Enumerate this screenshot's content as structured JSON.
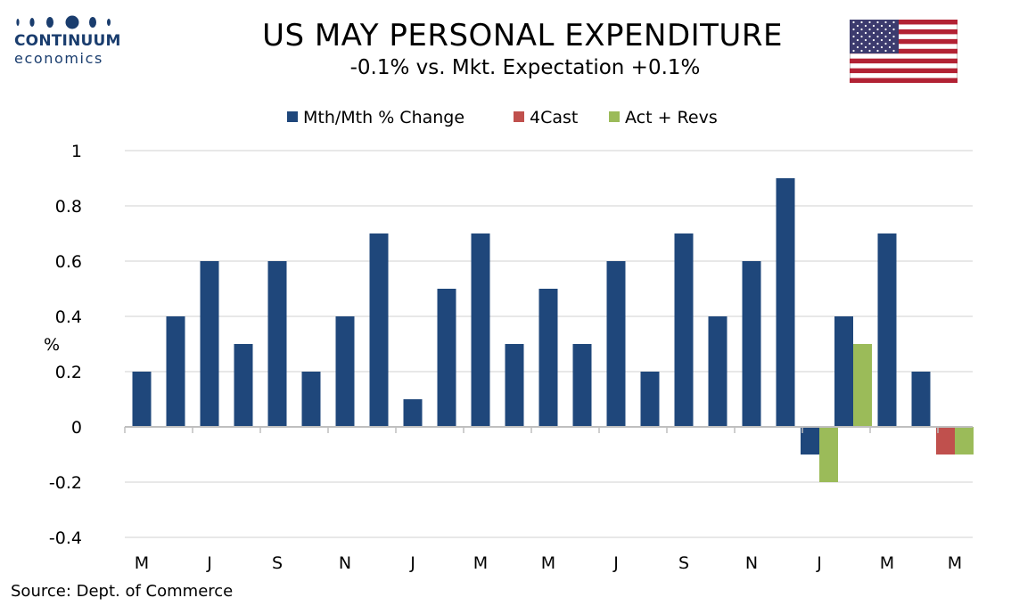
{
  "header": {
    "title": "US MAY PERSONAL EXPENDITURE",
    "subtitle": "-0.1% vs. Mkt. Expectation +0.1%"
  },
  "logo": {
    "name": "CONTINUUM",
    "sub": "economics",
    "color": "#1a3d6e"
  },
  "flag": {
    "icon": "us-flag-icon"
  },
  "source": "Source: Dept. of Commerce",
  "chart_data": {
    "type": "bar",
    "title": "US MAY PERSONAL EXPENDITURE",
    "subtitle": "-0.1% vs. Mkt. Expectation +0.1%",
    "ylabel": "%",
    "xlabel": "",
    "ylim": [
      -0.4,
      1
    ],
    "yticks": [
      1,
      0.8,
      0.6,
      0.4,
      0.2,
      0,
      -0.2,
      -0.4
    ],
    "ytick_labels": [
      "1",
      "0.8",
      "0.6",
      "0.4",
      "0.2",
      "0",
      "-0.2",
      "-0.4"
    ],
    "grid": true,
    "legend_position": "top-center",
    "x_tick_labels": [
      "M",
      "J",
      "S",
      "N",
      "J",
      "M",
      "M",
      "J",
      "S",
      "N",
      "J",
      "M",
      "M"
    ],
    "series": [
      {
        "name": "Mth/Mth % Change",
        "color": "#1f477b",
        "values": [
          0.2,
          0.4,
          0.6,
          0.3,
          0.6,
          0.2,
          0.4,
          0.7,
          0.1,
          0.5,
          0.7,
          0.3,
          0.5,
          0.3,
          0.6,
          0.2,
          0.7,
          0.4,
          0.6,
          0.9,
          -0.1,
          0.4,
          0.7,
          0.2,
          null
        ]
      },
      {
        "name": "4Cast",
        "color": "#c0504d",
        "values": [
          null,
          null,
          null,
          null,
          null,
          null,
          null,
          null,
          null,
          null,
          null,
          null,
          null,
          null,
          null,
          null,
          null,
          null,
          null,
          null,
          null,
          null,
          null,
          null,
          -0.1
        ]
      },
      {
        "name": "Act + Revs",
        "color": "#9bbb59",
        "values": [
          null,
          null,
          null,
          null,
          null,
          null,
          null,
          null,
          null,
          null,
          null,
          null,
          null,
          null,
          null,
          null,
          null,
          null,
          null,
          null,
          -0.2,
          0.3,
          null,
          null,
          -0.1
        ]
      }
    ]
  }
}
